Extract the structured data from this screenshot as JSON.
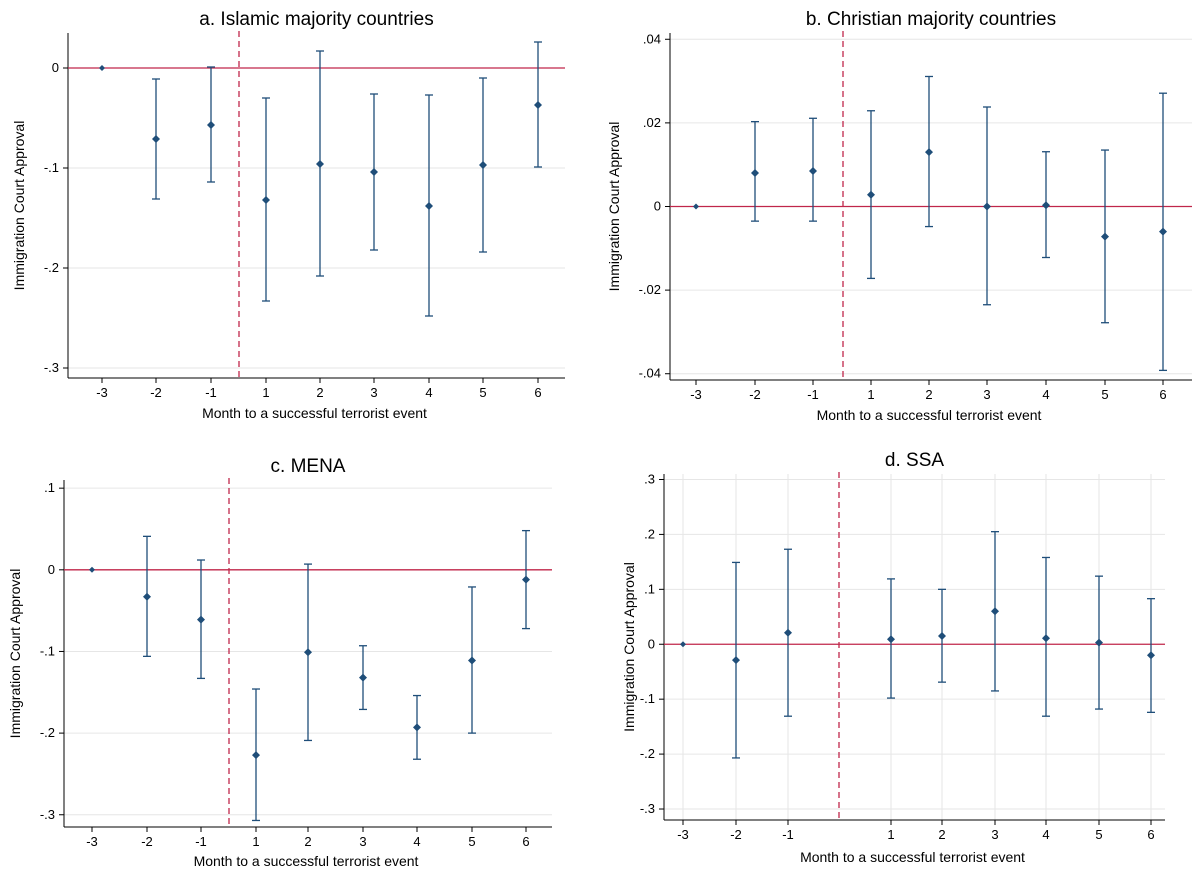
{
  "colors": {
    "marker": "#1f4e79",
    "zero_line": "#c0264a",
    "event_line": "#c0264a",
    "grid": "#e6e6e6"
  },
  "chart_data": [
    {
      "type": "scatter",
      "title": "a. Islamic majority countries",
      "xlabel": "Month to a successful terrorist event",
      "ylabel": "Immigration Court Approval",
      "x": [
        -3,
        -2,
        -1,
        1,
        2,
        3,
        4,
        5,
        6
      ],
      "xticks": [
        "-3",
        "-2",
        "-1",
        "1",
        "2",
        "3",
        "4",
        "5",
        "6"
      ],
      "y": [
        0,
        -0.071,
        -0.057,
        -0.132,
        -0.096,
        -0.104,
        -0.138,
        -0.097,
        -0.037
      ],
      "ci_low": [
        0,
        -0.131,
        -0.114,
        -0.233,
        -0.208,
        -0.182,
        -0.248,
        -0.184,
        -0.099
      ],
      "ci_high": [
        0,
        -0.011,
        0.001,
        -0.03,
        0.017,
        -0.026,
        -0.027,
        -0.01,
        0.026
      ],
      "yticks": [
        0,
        -0.1,
        -0.2,
        -0.3
      ],
      "ytick_labels": [
        "0",
        "-.1",
        "-.2",
        "-.3"
      ],
      "ylim": [
        -0.31,
        0.035
      ],
      "event_line_after": -1,
      "grid": true
    },
    {
      "type": "scatter",
      "title": "b. Christian majority countries",
      "xlabel": "Month to a successful terrorist event",
      "ylabel": "Immigration Court Approval",
      "x": [
        -3,
        -2,
        -1,
        1,
        2,
        3,
        4,
        5,
        6
      ],
      "xticks": [
        "-3",
        "-2",
        "-1",
        "1",
        "2",
        "3",
        "4",
        "5",
        "6"
      ],
      "y": [
        0,
        0.008,
        0.0085,
        0.0028,
        0.013,
        0,
        0.0003,
        -0.0072,
        -0.006
      ],
      "ci_low": [
        0,
        -0.0035,
        -0.0035,
        -0.0172,
        -0.0048,
        -0.0235,
        -0.0122,
        -0.0278,
        -0.0392
      ],
      "ci_high": [
        0,
        0.0203,
        0.0211,
        0.0229,
        0.0311,
        0.0238,
        0.0131,
        0.0135,
        0.0271
      ],
      "yticks": [
        0.04,
        0.02,
        0,
        -0.02,
        -0.04
      ],
      "ytick_labels": [
        ".04",
        ".02",
        "0",
        "-.02",
        "-.04"
      ],
      "ylim": [
        -0.0415,
        0.0415
      ],
      "event_line_after": -1,
      "grid": true
    },
    {
      "type": "scatter",
      "title": "c. MENA",
      "xlabel": "Month to a successful terrorist event",
      "ylabel": "Immigration Court Approval",
      "x": [
        -3,
        -2,
        -1,
        1,
        2,
        3,
        4,
        5,
        6
      ],
      "xticks": [
        "-3",
        "-2",
        "-1",
        "1",
        "2",
        "3",
        "4",
        "5",
        "6"
      ],
      "y": [
        0,
        -0.033,
        -0.061,
        -0.227,
        -0.101,
        -0.132,
        -0.193,
        -0.111,
        -0.012
      ],
      "ci_low": [
        0,
        -0.106,
        -0.133,
        -0.307,
        -0.209,
        -0.171,
        -0.232,
        -0.2,
        -0.072
      ],
      "ci_high": [
        0,
        0.041,
        0.012,
        -0.146,
        0.007,
        -0.093,
        -0.154,
        -0.021,
        0.048
      ],
      "yticks": [
        0.1,
        0,
        -0.1,
        -0.2,
        -0.3
      ],
      "ytick_labels": [
        ".1",
        "0",
        "-.1",
        "-.2",
        "-.3"
      ],
      "ylim": [
        -0.315,
        0.11
      ],
      "event_line_after": -1,
      "grid": true
    },
    {
      "type": "scatter",
      "title": "d. SSA",
      "xlabel": "Month to a successful terrorist event",
      "ylabel": "Immigration Court Approval",
      "x": [
        -3,
        -2,
        -1,
        1,
        2,
        3,
        4,
        5,
        6
      ],
      "xticks": [
        "-3",
        "-2",
        "-1",
        "1",
        "2",
        "3",
        "4",
        "5",
        "6"
      ],
      "y": [
        0,
        -0.029,
        0.021,
        0.009,
        0.015,
        0.06,
        0.011,
        0.003,
        -0.02
      ],
      "ci_low": [
        0,
        -0.207,
        -0.131,
        -0.098,
        -0.069,
        -0.085,
        -0.131,
        -0.118,
        -0.124
      ],
      "ci_high": [
        0,
        0.149,
        0.173,
        0.119,
        0.1,
        0.205,
        0.158,
        0.124,
        0.083
      ],
      "yticks": [
        0.3,
        0.2,
        0.1,
        0,
        -0.1,
        -0.2,
        -0.3
      ],
      "ytick_labels": [
        ".3",
        ".2",
        ".1",
        "0",
        "-.1",
        "-.2",
        "-.3"
      ],
      "ylim": [
        -0.32,
        0.31
      ],
      "event_line_after": -1,
      "event_line_at": 0,
      "grid": true,
      "vertical_grid": true
    }
  ]
}
